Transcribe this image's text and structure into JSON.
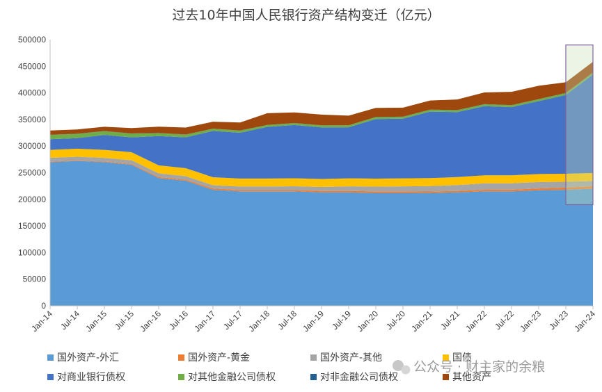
{
  "chart_data": {
    "type": "area",
    "stacked": true,
    "title": "过去10年中国人民银行资产结构变迁（亿元）",
    "xlabel": "",
    "ylabel": "",
    "ylim": [
      0,
      500000
    ],
    "yticks": [
      0,
      50000,
      100000,
      150000,
      200000,
      250000,
      300000,
      350000,
      400000,
      450000,
      500000
    ],
    "ytick_labels": [
      "0",
      "50000",
      "100000",
      "150000",
      "200000",
      "250000",
      "300000",
      "350000",
      "400000",
      "450000",
      "500000"
    ],
    "xtick_labels": [
      "Jan-14",
      "Jul-14",
      "Jan-15",
      "Jul-15",
      "Jan-16",
      "Jul-16",
      "Jan-17",
      "Jul-17",
      "Jan-18",
      "Jul-18",
      "Jan-19",
      "Jul-19",
      "Jan-20",
      "Jul-20",
      "Jan-21",
      "Jul-21",
      "Jan-22",
      "Jul-22",
      "Jan-23",
      "Jul-23",
      "Jan-24"
    ],
    "x_semiannual_index": [
      0,
      1,
      2,
      3,
      4,
      5,
      6,
      7,
      8,
      9,
      10,
      11,
      12,
      13,
      14,
      15,
      16,
      17,
      18,
      19,
      20
    ],
    "grid": false,
    "legend_position": "bottom",
    "highlight": {
      "from": "Jul-23",
      "to": "Jan-24",
      "y_from": 190000,
      "y_to": 490000
    },
    "series": [
      {
        "name": "国外资产-外汇",
        "color": "#5B9BD5",
        "values": [
          270000,
          272000,
          270000,
          265000,
          240000,
          235000,
          218000,
          215000,
          215000,
          215000,
          213000,
          213000,
          212000,
          212000,
          212000,
          213000,
          215000,
          215000,
          217000,
          218000,
          220000
        ]
      },
      {
        "name": "国外资产-黄金",
        "color": "#ED7D31",
        "values": [
          1000,
          1000,
          1000,
          1500,
          1800,
          2000,
          2500,
          2500,
          2500,
          2500,
          2800,
          2900,
          2900,
          2900,
          2800,
          2800,
          3000,
          3200,
          3500,
          4000,
          4500
        ]
      },
      {
        "name": "国外资产-其他",
        "color": "#A5A5A5",
        "values": [
          7000,
          7000,
          7000,
          7000,
          7000,
          6500,
          6000,
          6500,
          6500,
          7000,
          7500,
          8500,
          9000,
          9500,
          10000,
          11000,
          12000,
          12000,
          12000,
          11000,
          10000
        ]
      },
      {
        "name": "国债",
        "color": "#FFC000",
        "values": [
          15000,
          15000,
          15000,
          15000,
          15000,
          15000,
          15000,
          15000,
          15000,
          15000,
          15000,
          15000,
          15000,
          15000,
          15000,
          15000,
          15000,
          15000,
          15000,
          15000,
          15000
        ]
      },
      {
        "name": "对商业银行债权",
        "color": "#4472C4",
        "values": [
          20000,
          20000,
          28000,
          28000,
          55000,
          58000,
          87000,
          86000,
          97000,
          100000,
          97000,
          96000,
          112000,
          112000,
          125000,
          122000,
          130000,
          128000,
          137000,
          148000,
          185000
        ]
      },
      {
        "name": "对其他金融公司债权",
        "color": "#70AD47",
        "values": [
          8000,
          8000,
          7000,
          7000,
          5500,
          5000,
          4000,
          4000,
          3500,
          3500,
          3500,
          3500,
          3500,
          3500,
          3500,
          3500,
          3500,
          3500,
          3500,
          3500,
          3500
        ]
      },
      {
        "name": "对非金融公司债权",
        "color": "#255E91",
        "values": [
          300,
          300,
          300,
          300,
          300,
          300,
          300,
          300,
          300,
          300,
          300,
          300,
          300,
          300,
          300,
          300,
          300,
          300,
          300,
          300,
          300
        ]
      },
      {
        "name": "其他资产",
        "color": "#9E480E",
        "values": [
          8000,
          8000,
          8000,
          10000,
          12000,
          13000,
          13000,
          15000,
          22000,
          20000,
          20000,
          18000,
          17000,
          17000,
          17000,
          20000,
          22000,
          25000,
          25000,
          20000,
          20000
        ]
      }
    ]
  },
  "watermark": {
    "text": "公众号 · 财主家的余粮",
    "icon": "wechat-icon"
  }
}
